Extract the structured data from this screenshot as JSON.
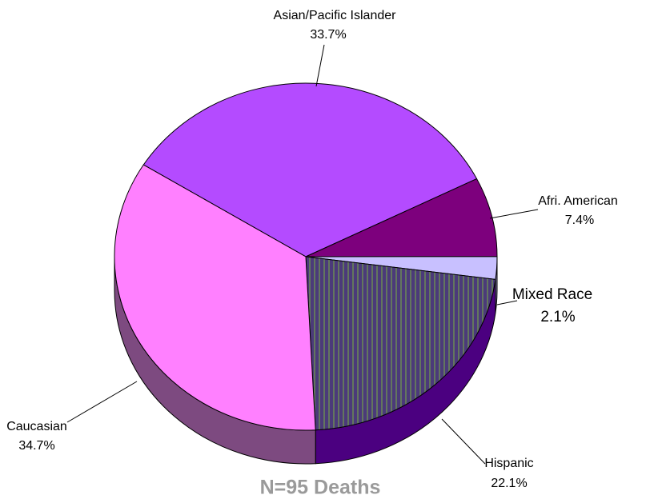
{
  "chart_data": {
    "type": "pie",
    "annotation": "N=95 Deaths",
    "categories": [
      "Asian/Pacific Islander",
      "Afri.  American",
      "Mixed Race",
      "Hispanic",
      "Caucasian"
    ],
    "values": [
      33.7,
      7.4,
      2.1,
      22.1,
      34.7
    ],
    "value_labels": [
      "33.7%",
      "7.4%",
      "2.1%",
      "22.1%",
      "34.7%"
    ],
    "colors": [
      "#b44bff",
      "#7d007d",
      "#c8c0ff",
      "#4b3a7a",
      "#ff80ff"
    ]
  }
}
